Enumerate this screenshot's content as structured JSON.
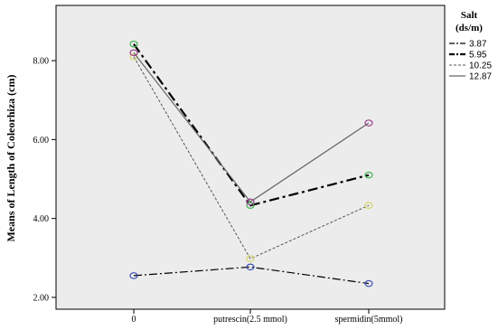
{
  "chart_data": {
    "type": "line",
    "title": "",
    "xlabel": "",
    "ylabel": "Means of Length of Coleorhiza (cm)",
    "categories": [
      "0",
      "putrescin(2.5 mmol)",
      "spermidin(5mmol)"
    ],
    "y_ticks": [
      "2.00",
      "4.00",
      "6.00",
      "8.00"
    ],
    "ylim": [
      1.7,
      9.4
    ],
    "grid": false,
    "legend_position": "right",
    "legend_title": [
      "Salt",
      "(ds/m)"
    ],
    "background_color": "#ececec",
    "series": [
      {
        "name": "3.87",
        "values": [
          2.55,
          2.77,
          2.35
        ],
        "line_style": "dash-dot",
        "line_color": "#000000",
        "marker_color": "#3d4fb3"
      },
      {
        "name": "5.95",
        "values": [
          8.42,
          4.33,
          5.1
        ],
        "line_style": "dash-dot-bold",
        "line_color": "#000000",
        "marker_color": "#3eb24f"
      },
      {
        "name": "10.25",
        "values": [
          8.1,
          2.98,
          4.33
        ],
        "line_style": "dotted",
        "line_color": "#555555",
        "marker_color": "#d6d66e"
      },
      {
        "name": "12.87",
        "values": [
          8.2,
          4.42,
          6.42
        ],
        "line_style": "solid",
        "line_color": "#666666",
        "marker_color": "#9b3f8a"
      }
    ]
  }
}
